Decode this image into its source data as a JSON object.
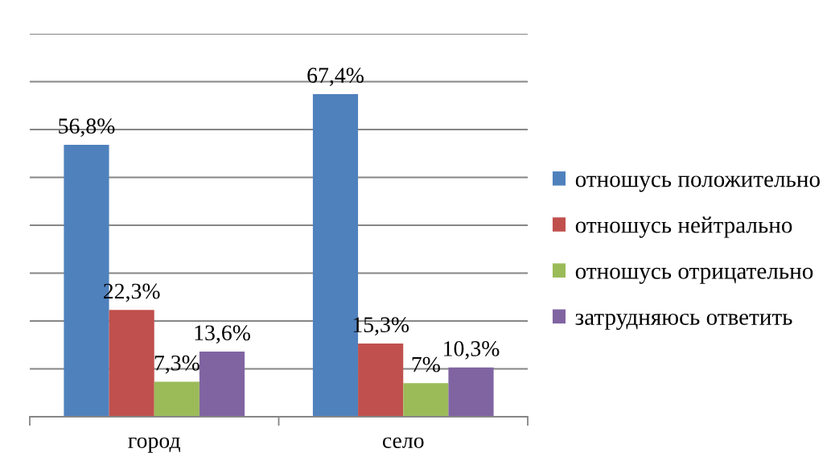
{
  "chart_data": {
    "type": "bar",
    "categories": [
      "город",
      "село"
    ],
    "series": [
      {
        "name": "отношусь положительно",
        "color": "#4f81bd",
        "values": [
          56.8,
          67.4
        ],
        "value_labels": [
          "56,8%",
          "67,4%"
        ]
      },
      {
        "name": "отношусь нейтрально",
        "color": "#c0504d",
        "values": [
          22.3,
          15.3
        ],
        "value_labels": [
          "22,3%",
          "15,3%"
        ]
      },
      {
        "name": "отношусь отрицательно",
        "color": "#9bbb59",
        "values": [
          7.3,
          7
        ],
        "value_labels": [
          "7,3%",
          "7%"
        ]
      },
      {
        "name": "затрудняюсь ответить",
        "color": "#8064a2",
        "values": [
          13.6,
          10.3
        ],
        "value_labels": [
          "13,6%",
          "10,3%"
        ]
      }
    ],
    "ylim": [
      0,
      80
    ],
    "yticks": [
      {
        "value": 0,
        "label": null
      },
      {
        "value": 10,
        "label": null
      },
      {
        "value": 20,
        "label": null
      },
      {
        "value": 30,
        "label": null
      },
      {
        "value": 40,
        "label": null
      },
      {
        "value": 50,
        "label": null
      },
      {
        "value": 60,
        "label": null
      },
      {
        "value": 70,
        "label": null
      },
      {
        "value": 80,
        "label": null
      }
    ],
    "grid": "y",
    "legend": "right",
    "tick_labels": "x"
  }
}
